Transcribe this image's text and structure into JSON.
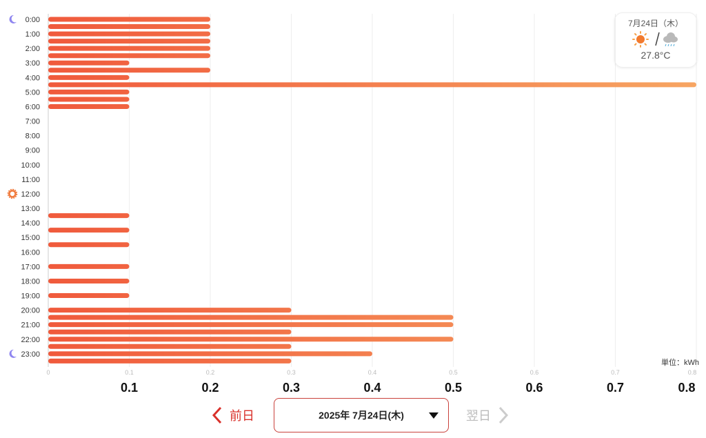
{
  "chart_data": {
    "type": "bar",
    "orientation": "horizontal",
    "categories": [
      "0:00",
      "0:30",
      "1:00",
      "1:30",
      "2:00",
      "2:30",
      "3:00",
      "3:30",
      "4:00",
      "4:30",
      "5:00",
      "5:30",
      "6:00",
      "6:30",
      "7:00",
      "7:30",
      "8:00",
      "8:30",
      "9:00",
      "9:30",
      "10:00",
      "10:30",
      "11:00",
      "11:30",
      "12:00",
      "12:30",
      "13:00",
      "13:30",
      "14:00",
      "14:30",
      "15:00",
      "15:30",
      "16:00",
      "16:30",
      "17:00",
      "17:30",
      "18:00",
      "18:30",
      "19:00",
      "19:30",
      "20:00",
      "20:30",
      "21:00",
      "21:30",
      "22:00",
      "22:30",
      "23:00",
      "23:30"
    ],
    "values": [
      0.2,
      0.2,
      0.2,
      0.2,
      0.2,
      0.2,
      0.1,
      0.2,
      0.1,
      0.8,
      0.1,
      0.1,
      0.1,
      0,
      0,
      0,
      0,
      0,
      0,
      0,
      0,
      0,
      0,
      0,
      0,
      0,
      0,
      0.1,
      0,
      0.1,
      0,
      0.1,
      0,
      0,
      0.1,
      0,
      0.1,
      0,
      0.1,
      0,
      0.3,
      0.5,
      0.5,
      0.3,
      0.5,
      0.3,
      0.4,
      0.3
    ],
    "y_tick_labels": [
      "0:00",
      "1:00",
      "2:00",
      "3:00",
      "4:00",
      "5:00",
      "6:00",
      "7:00",
      "8:00",
      "9:00",
      "10:00",
      "11:00",
      "12:00",
      "13:00",
      "14:00",
      "15:00",
      "16:00",
      "17:00",
      "18:00",
      "19:00",
      "20:00",
      "21:00",
      "22:00",
      "23:00"
    ],
    "x_tick_labels": [
      "0",
      "0.1",
      "0.2",
      "0.3",
      "0.4",
      "0.5",
      "0.6",
      "0.7",
      "0.8"
    ],
    "x_big_labels": [
      "0.1",
      "0.2",
      "0.3",
      "0.4",
      "0.5",
      "0.6",
      "0.7",
      "0.8"
    ],
    "xlim": [
      0,
      0.8
    ],
    "grid": true,
    "unit_label": "単位：kWh",
    "colors": {
      "bar_start": "#f05a3c",
      "bar_end": "#f7a562",
      "moon": "#8f86f0",
      "sun": "#f07a3c"
    },
    "markers": [
      {
        "hour": "0:00",
        "icon": "moon-icon"
      },
      {
        "hour": "12:00",
        "icon": "sun-icon"
      },
      {
        "hour": "23:00",
        "icon": "moon-icon"
      }
    ]
  },
  "weather": {
    "date": "7月24日（木）",
    "icons": [
      "sunny-icon",
      "rain-cloud-icon"
    ],
    "temperature": "27.8°C"
  },
  "nav": {
    "prev": "前日",
    "date": "2025年 7月24日(木)",
    "next": "翌日"
  }
}
